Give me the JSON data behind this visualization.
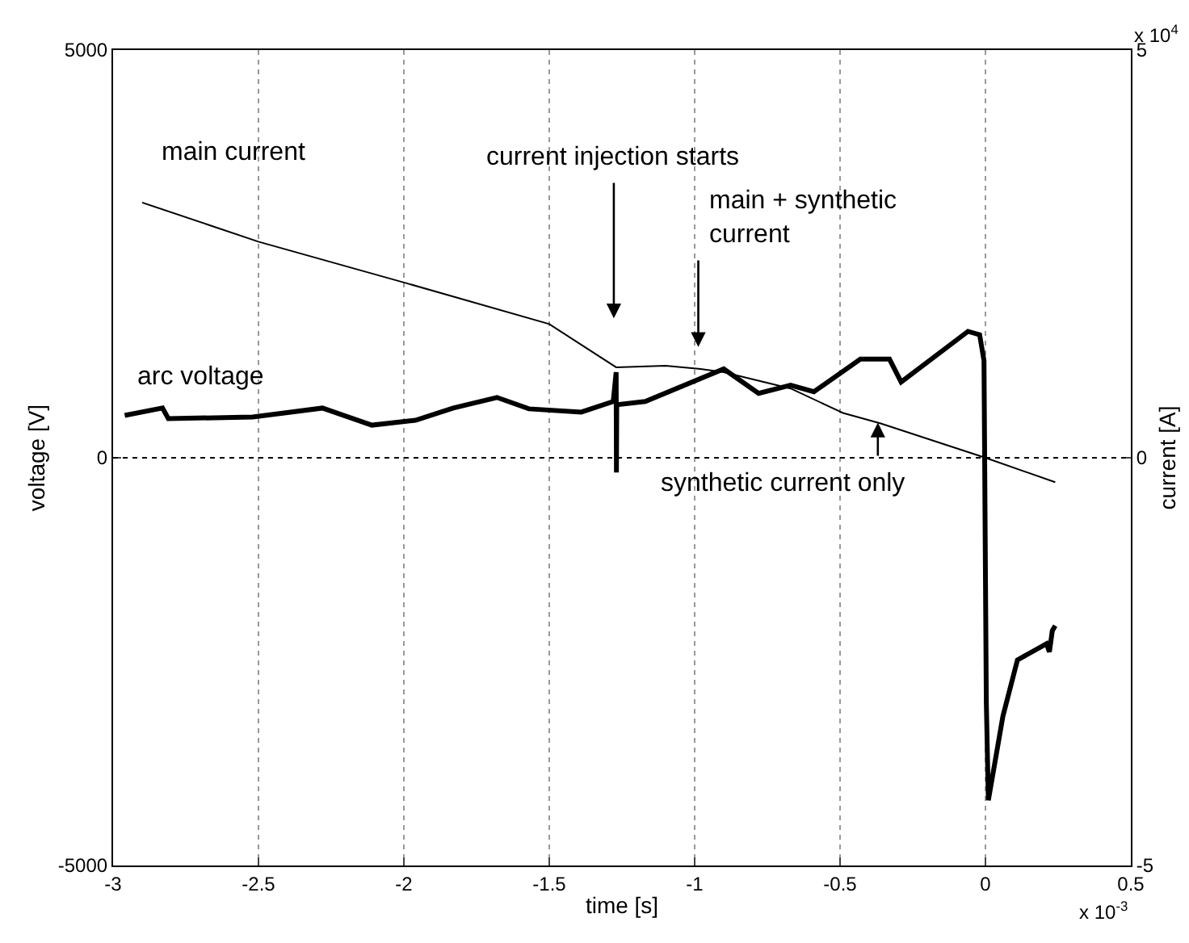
{
  "chart_data": {
    "type": "line",
    "xlabel": "time [s]",
    "ylabel": "voltage [V]",
    "y2label": "current [A]",
    "xlim": [
      -3,
      0.5
    ],
    "xticks": [
      -3,
      -2.5,
      -2,
      -1.5,
      -1,
      -0.5,
      0,
      0.5
    ],
    "ylim": [
      -5000,
      5000
    ],
    "yticks": [
      -5000,
      0,
      5000
    ],
    "y2lim": [
      -5,
      5
    ],
    "y2ticks": [
      -5,
      0,
      5
    ],
    "grid": "x",
    "ref_lines": [
      {
        "axis": "y",
        "value": 0,
        "line_style": "dotted"
      }
    ],
    "legend": false,
    "marker": "none",
    "line_style": "solid",
    "series": [
      {
        "name": "main current",
        "color": "#000000",
        "axis": "y2",
        "x": [
          -2.9,
          -2.5,
          -2.0,
          -1.5,
          -1.27,
          -1.1,
          -0.98,
          -0.9,
          -0.67,
          -0.49,
          -0.36,
          0,
          0.24
        ],
        "values": [
          3.13,
          2.65,
          2.15,
          1.64,
          1.11,
          1.13,
          1.09,
          1.05,
          0.85,
          0.55,
          0.42,
          0,
          -0.3
        ]
      },
      {
        "name": "arc voltage",
        "color": "#000000",
        "x": [
          -2.96,
          -2.83,
          -2.81,
          -2.52,
          -2.28,
          -2.11,
          -1.96,
          -1.83,
          -1.68,
          -1.57,
          -1.39,
          -1.28,
          -1.27,
          -1.269,
          -1.268,
          -1.17,
          -0.9,
          -0.78,
          -0.67,
          -0.59,
          -0.43,
          -0.33,
          -0.29,
          -0.06,
          -0.02,
          -0.005,
          0.003,
          0.01,
          0.06,
          0.11,
          0.21,
          0.22,
          0.23,
          0.24
        ],
        "values": [
          520,
          610,
          480,
          500,
          610,
          400,
          460,
          610,
          740,
          600,
          560,
          690,
          1050,
          -180,
          650,
          690,
          1090,
          790,
          890,
          810,
          1210,
          1210,
          930,
          1550,
          1510,
          1190,
          -3000,
          -4200,
          -3170,
          -2480,
          -2280,
          -2380,
          -2120,
          -2060
        ]
      }
    ],
    "annotations": [
      "current injection starts",
      "main + synthetic\ncurrent",
      {
        "text": "synthetic current only",
        "x": -0.37,
        "y": 430
      },
      "x 10$^{-3}$",
      "x 10$^{4}$"
    ]
  }
}
